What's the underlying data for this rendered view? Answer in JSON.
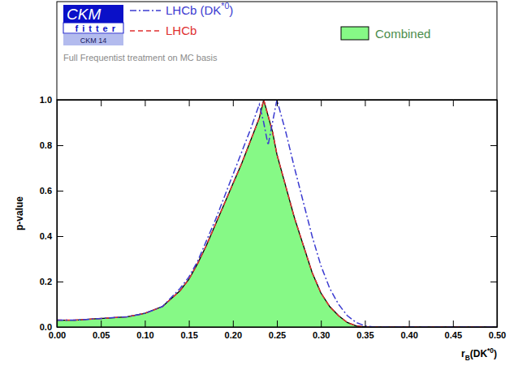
{
  "chart_data": {
    "type": "line",
    "subtitle": "Full Frequentist treatment on MC basis",
    "annotations": [
      "CKM",
      "fitter",
      "CKM 14"
    ],
    "x_label": "rB(DK*0)",
    "y_label": "p-value",
    "x": [
      0,
      0.02,
      0.04,
      0.06,
      0.08,
      0.1,
      0.12,
      0.14,
      0.15,
      0.16,
      0.17,
      0.18,
      0.19,
      0.2,
      0.21,
      0.22,
      0.23,
      0.235,
      0.24,
      0.245,
      0.25,
      0.26,
      0.27,
      0.28,
      0.29,
      0.3,
      0.31,
      0.32,
      0.33,
      0.34,
      0.35,
      0.36,
      0.4,
      0.45,
      0.5
    ],
    "series": [
      {
        "name": "LHCb (DK*0)",
        "color": "#3b3bd1",
        "line_style": "dashdot",
        "values": [
          0.03,
          0.03,
          0.035,
          0.04,
          0.045,
          0.06,
          0.09,
          0.17,
          0.22,
          0.29,
          0.38,
          0.47,
          0.57,
          0.67,
          0.77,
          0.87,
          0.98,
          0.9,
          0.8,
          0.9,
          1.0,
          0.86,
          0.7,
          0.55,
          0.4,
          0.27,
          0.17,
          0.1,
          0.05,
          0.02,
          0.005,
          0,
          0,
          0,
          0
        ]
      },
      {
        "name": "LHCb",
        "color": "#e03030",
        "line_style": "dashed",
        "values": [
          0.03,
          0.03,
          0.035,
          0.04,
          0.045,
          0.06,
          0.09,
          0.16,
          0.21,
          0.28,
          0.36,
          0.45,
          0.54,
          0.63,
          0.72,
          0.82,
          0.92,
          1.0,
          0.93,
          0.86,
          0.76,
          0.62,
          0.48,
          0.36,
          0.24,
          0.15,
          0.09,
          0.05,
          0.02,
          0.005,
          0,
          0,
          0,
          0,
          0
        ]
      },
      {
        "name": "Combined",
        "color": "#86f986",
        "type": "area",
        "line_style": "solid",
        "values": [
          0.03,
          0.03,
          0.035,
          0.04,
          0.045,
          0.06,
          0.09,
          0.16,
          0.21,
          0.28,
          0.36,
          0.45,
          0.54,
          0.63,
          0.72,
          0.82,
          0.92,
          1.0,
          0.93,
          0.86,
          0.76,
          0.62,
          0.48,
          0.36,
          0.24,
          0.15,
          0.09,
          0.05,
          0.02,
          0.005,
          0,
          0,
          0,
          0,
          0
        ]
      }
    ],
    "xlim": [
      0,
      0.5
    ],
    "xticks": [
      {
        "value": 0,
        "label": "0.00"
      },
      0.05,
      {
        "value": 0.1,
        "label": "0.10"
      },
      0.15,
      {
        "value": 0.2,
        "label": "0.20"
      },
      0.25,
      {
        "value": 0.3,
        "label": "0.30"
      },
      0.35,
      {
        "value": 0.4,
        "label": "0.40"
      },
      0.45,
      {
        "value": 0.5,
        "label": "0.50"
      }
    ],
    "ylim": [
      0,
      1
    ],
    "yticks": [
      {
        "value": 0,
        "label": "0.0"
      },
      0.2,
      0.4,
      0.6,
      0.8,
      {
        "value": 1,
        "label": "1.0"
      }
    ],
    "grid": false,
    "legend": "top"
  }
}
